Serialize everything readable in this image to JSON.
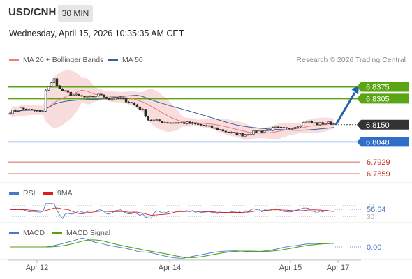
{
  "header": {
    "symbol": "USD/CNH",
    "timeframe": "30 MIN",
    "datetime": "Wednesday, April 15, 2026 10:35:35 AM CET"
  },
  "legend": {
    "ma20_bb": "MA 20 + Bollinger Bands",
    "ma50": "MA 50",
    "credit": "Research © 2026 Trading Central"
  },
  "rsi_legend": {
    "rsi": "RSI",
    "ma9": "9MA"
  },
  "macd_legend": {
    "macd": "MACD",
    "signal": "MACD Signal"
  },
  "colors": {
    "resistance": "#5aa514",
    "support": "#2f6fc9",
    "target_line": "#c0392b",
    "current": "#333333",
    "candle": "#2b2b2b",
    "bb_fill": "#f8d3d3",
    "ma20": "#e67a7a",
    "ma50": "#3a5f9a",
    "arrow": "#2361a8",
    "rsi": "#4a78c9",
    "rsi_ma": "#d62020",
    "macd": "#4a78c9",
    "macd_signal": "#4fa11a"
  },
  "chart_data": {
    "type": "candlestick",
    "x_ticks": [
      "Apr 12",
      "Apr 14",
      "Apr 15",
      "Apr 17"
    ],
    "levels": [
      {
        "label": "6.8375",
        "value": 6.8375,
        "kind": "resistance"
      },
      {
        "label": "6.8305",
        "value": 6.8305,
        "kind": "resistance"
      },
      {
        "label": "6.8150",
        "value": 6.815,
        "kind": "current"
      },
      {
        "label": "6.8048",
        "value": 6.8048,
        "kind": "support"
      },
      {
        "label": "6.7929",
        "value": 6.7929,
        "kind": "target"
      },
      {
        "label": "6.7859",
        "value": 6.7859,
        "kind": "target"
      }
    ],
    "price_range": [
      6.7822,
      6.8468
    ],
    "price_path": [
      [
        0,
        6.8225
      ],
      [
        4,
        6.8245
      ],
      [
        8,
        6.8235
      ],
      [
        10,
        6.823
      ],
      [
        12,
        6.8225
      ],
      [
        13,
        6.836
      ],
      [
        15,
        6.8395
      ],
      [
        16,
        6.842
      ],
      [
        18,
        6.836
      ],
      [
        22,
        6.833
      ],
      [
        28,
        6.831
      ],
      [
        33,
        6.833
      ],
      [
        36,
        6.83
      ],
      [
        40,
        6.8305
      ],
      [
        44,
        6.828
      ],
      [
        48,
        6.8235
      ],
      [
        50,
        6.818
      ],
      [
        56,
        6.8165
      ],
      [
        64,
        6.816
      ],
      [
        70,
        6.8145
      ],
      [
        76,
        6.812
      ],
      [
        80,
        6.81
      ],
      [
        84,
        6.809
      ],
      [
        88,
        6.8105
      ],
      [
        92,
        6.8115
      ],
      [
        96,
        6.813
      ],
      [
        100,
        6.8125
      ],
      [
        104,
        6.8145
      ],
      [
        107,
        6.817
      ],
      [
        111,
        6.8155
      ],
      [
        115,
        6.816
      ],
      [
        117,
        6.8155
      ]
    ],
    "forecast_arrow": {
      "from": 6.815,
      "to": 6.8365
    },
    "rsi": {
      "value_label": "56.64",
      "levels": [
        70,
        30
      ],
      "value": 56.64
    },
    "macd": {
      "value_label": "0.00",
      "value": 0.0
    }
  }
}
